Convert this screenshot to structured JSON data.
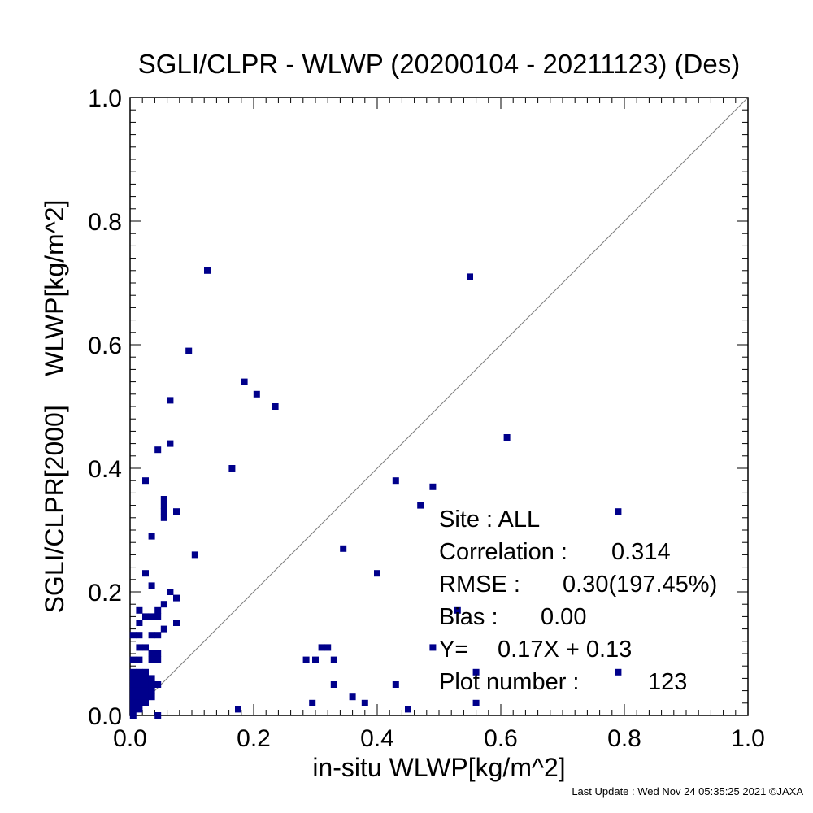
{
  "chart_data": {
    "type": "scatter",
    "title": "SGLI/CLPR - WLWP (20200104 - 20211123) (Des)",
    "xlabel": "in-situ WLWP[kg/m^2]",
    "ylabel": "SGLI/CLPR[2000]    WLWP[kg/m^2]",
    "xlim": [
      0.0,
      1.0
    ],
    "ylim": [
      0.0,
      1.0
    ],
    "xticks": [
      "0.0",
      "0.2",
      "0.4",
      "0.6",
      "0.8",
      "1.0"
    ],
    "yticks": [
      "0.0",
      "0.2",
      "0.4",
      "0.6",
      "0.8",
      "1.0"
    ],
    "grid": false,
    "reference_line": "1:1 diagonal",
    "marker_color": "#00008b",
    "stats": [
      {
        "label": "Site : ALL",
        "value": ""
      },
      {
        "label": "Correlation :",
        "value": "0.314"
      },
      {
        "label": "RMSE :",
        "value": "0.30(197.45%)"
      },
      {
        "label": "Bias :",
        "value": "0.00"
      },
      {
        "label": "Y=",
        "value": "0.17X +    0.13"
      },
      {
        "label": "Plot number :",
        "value": "123"
      }
    ],
    "points": [
      [
        0.125,
        0.72
      ],
      [
        0.55,
        0.71
      ],
      [
        0.095,
        0.59
      ],
      [
        0.185,
        0.54
      ],
      [
        0.205,
        0.52
      ],
      [
        0.235,
        0.5
      ],
      [
        0.065,
        0.51
      ],
      [
        0.61,
        0.45
      ],
      [
        0.045,
        0.43
      ],
      [
        0.065,
        0.44
      ],
      [
        0.165,
        0.4
      ],
      [
        0.025,
        0.38
      ],
      [
        0.43,
        0.38
      ],
      [
        0.49,
        0.37
      ],
      [
        0.055,
        0.35
      ],
      [
        0.055,
        0.34
      ],
      [
        0.055,
        0.33
      ],
      [
        0.075,
        0.33
      ],
      [
        0.055,
        0.32
      ],
      [
        0.47,
        0.34
      ],
      [
        0.79,
        0.33
      ],
      [
        0.035,
        0.29
      ],
      [
        0.345,
        0.27
      ],
      [
        0.105,
        0.26
      ],
      [
        0.025,
        0.23
      ],
      [
        0.4,
        0.23
      ],
      [
        0.035,
        0.21
      ],
      [
        0.065,
        0.2
      ],
      [
        0.075,
        0.19
      ],
      [
        0.055,
        0.18
      ],
      [
        0.015,
        0.17
      ],
      [
        0.025,
        0.16
      ],
      [
        0.035,
        0.16
      ],
      [
        0.045,
        0.17
      ],
      [
        0.045,
        0.16
      ],
      [
        0.015,
        0.15
      ],
      [
        0.075,
        0.15
      ],
      [
        0.055,
        0.14
      ],
      [
        0.005,
        0.13
      ],
      [
        0.015,
        0.13
      ],
      [
        0.035,
        0.13
      ],
      [
        0.045,
        0.13
      ],
      [
        0.025,
        0.11
      ],
      [
        0.015,
        0.11
      ],
      [
        0.035,
        0.1
      ],
      [
        0.045,
        0.1
      ],
      [
        0.005,
        0.09
      ],
      [
        0.015,
        0.09
      ],
      [
        0.035,
        0.09
      ],
      [
        0.045,
        0.09
      ],
      [
        0.31,
        0.11
      ],
      [
        0.32,
        0.11
      ],
      [
        0.285,
        0.09
      ],
      [
        0.3,
        0.09
      ],
      [
        0.33,
        0.09
      ],
      [
        0.49,
        0.11
      ],
      [
        0.005,
        0.07
      ],
      [
        0.015,
        0.07
      ],
      [
        0.025,
        0.07
      ],
      [
        0.005,
        0.06
      ],
      [
        0.015,
        0.06
      ],
      [
        0.025,
        0.06
      ],
      [
        0.035,
        0.06
      ],
      [
        0.005,
        0.05
      ],
      [
        0.015,
        0.05
      ],
      [
        0.025,
        0.05
      ],
      [
        0.035,
        0.05
      ],
      [
        0.045,
        0.05
      ],
      [
        0.005,
        0.04
      ],
      [
        0.015,
        0.04
      ],
      [
        0.025,
        0.04
      ],
      [
        0.035,
        0.04
      ],
      [
        0.005,
        0.03
      ],
      [
        0.015,
        0.03
      ],
      [
        0.025,
        0.03
      ],
      [
        0.035,
        0.03
      ],
      [
        0.005,
        0.02
      ],
      [
        0.015,
        0.02
      ],
      [
        0.025,
        0.02
      ],
      [
        0.005,
        0.01
      ],
      [
        0.015,
        0.01
      ],
      [
        0.005,
        0.0
      ],
      [
        0.045,
        0.0
      ],
      [
        0.33,
        0.05
      ],
      [
        0.43,
        0.05
      ],
      [
        0.36,
        0.03
      ],
      [
        0.38,
        0.02
      ],
      [
        0.295,
        0.02
      ],
      [
        0.175,
        0.01
      ],
      [
        0.45,
        0.01
      ],
      [
        0.56,
        0.02
      ],
      [
        0.56,
        0.07
      ],
      [
        0.79,
        0.07
      ],
      [
        0.53,
        0.17
      ]
    ]
  },
  "footer": "Last Update : Wed Nov 24 05:35:25 2021 ©JAXA"
}
